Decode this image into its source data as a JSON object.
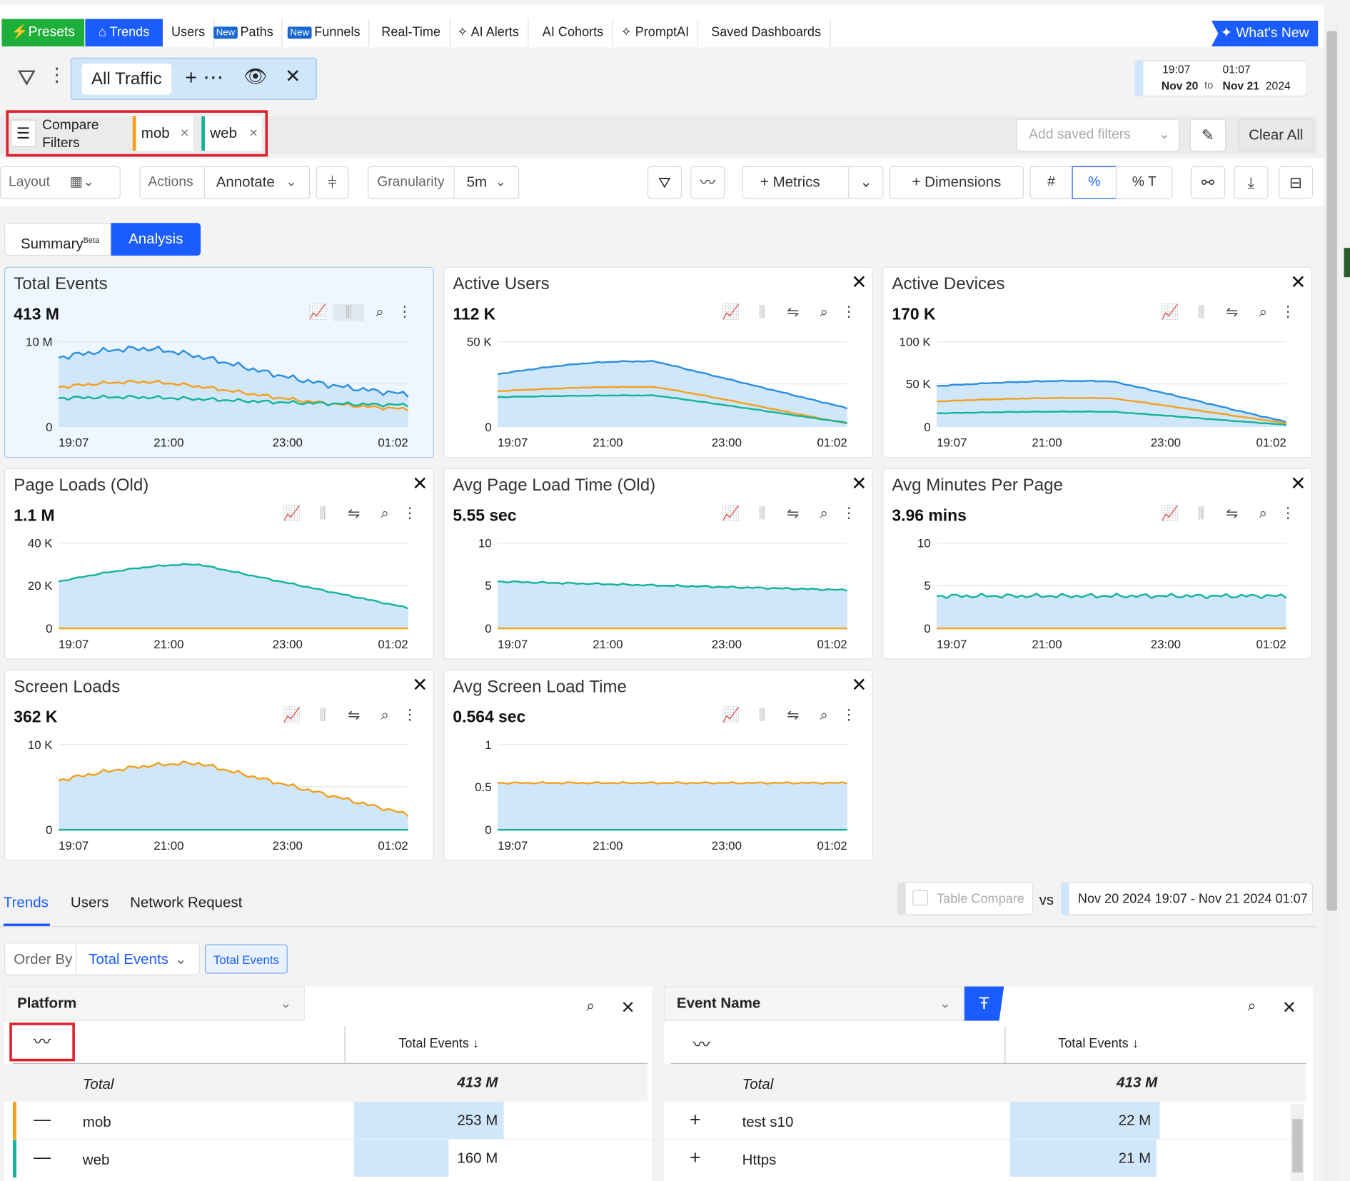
{
  "nav": {
    "presets": "Presets",
    "trends": "Trends",
    "users": "Users",
    "new": "New",
    "paths": "Paths",
    "funnels": "Funnels",
    "realtime": "Real-Time",
    "ai_alerts": "AI Alerts",
    "ai_cohorts": "AI Cohorts",
    "promptai": "PromptAI",
    "saved": "Saved Dashboards",
    "whats_new": "What's New"
  },
  "filter": {
    "chip": "All Traffic"
  },
  "date": {
    "from_time": "19:07",
    "from_date": "Nov 20",
    "to": "to",
    "to_time": "01:07",
    "to_date": "Nov 21",
    "year": "2024"
  },
  "compare": {
    "label1": "Compare",
    "label2": "Filters",
    "mob": "mob",
    "web": "web",
    "saved_placeholder": "Add saved filters",
    "clear": "Clear All"
  },
  "toolbar": {
    "layout": "Layout",
    "actions": "Actions",
    "annotate": "Annotate",
    "granularity": "Granularity",
    "gran_value": "5m",
    "metrics": "Metrics",
    "dimensions": "Dimensions",
    "hash": "#",
    "pct": "%",
    "pctT": "% T"
  },
  "view": {
    "summary": "Summary",
    "beta": "Beta",
    "analysis": "Analysis"
  },
  "cards": [
    {
      "title": "Total Events",
      "value": "413 M",
      "ymax": "10 M",
      "ymid": "",
      "y0": "0",
      "x": [
        "19:07",
        "21:00",
        "23:00",
        "01:02"
      ]
    },
    {
      "title": "Active Users",
      "value": "112 K",
      "ymax": "50 K",
      "ymid": "",
      "y0": "0",
      "x": [
        "19:07",
        "21:00",
        "23:00",
        "01:02"
      ]
    },
    {
      "title": "Active Devices",
      "value": "170 K",
      "ymax": "100 K",
      "ymid": "50 K",
      "y0": "0",
      "x": [
        "19:07",
        "21:00",
        "23:00",
        "01:02"
      ]
    },
    {
      "title": "Page Loads (Old)",
      "value": "1.1 M",
      "ymax": "40 K",
      "ymid": "20 K",
      "y0": "0",
      "x": [
        "19:07",
        "21:00",
        "23:00",
        "01:02"
      ]
    },
    {
      "title": "Avg Page Load Time (Old)",
      "value": "5.55 sec",
      "ymax": "10",
      "ymid": "5",
      "y0": "0",
      "x": [
        "19:07",
        "21:00",
        "23:00",
        "01:02"
      ]
    },
    {
      "title": "Avg Minutes Per Page",
      "value": "3.96 mins",
      "ymax": "10",
      "ymid": "5",
      "y0": "0",
      "x": [
        "19:07",
        "21:00",
        "23:00",
        "01:02"
      ]
    },
    {
      "title": "Screen Loads",
      "value": "362 K",
      "ymax": "10 K",
      "ymid": "",
      "y0": "0",
      "x": [
        "19:07",
        "21:00",
        "23:00",
        "01:02"
      ]
    },
    {
      "title": "Avg Screen Load Time",
      "value": "0.564 sec",
      "ymax": "1",
      "ymid": "0.5",
      "y0": "0",
      "x": [
        "19:07",
        "21:00",
        "23:00",
        "01:02"
      ]
    }
  ],
  "bottom": {
    "tab_trends": "Trends",
    "tab_users": "Users",
    "tab_network": "Network Request",
    "table_compare": "Table Compare",
    "vs": "vs",
    "range": "Nov 20 2024 19:07 - Nov 21 2024 01:07",
    "order_by": "Order By",
    "order_value": "Total Events",
    "order_chip": "Total Events"
  },
  "table1": {
    "dim": "Platform",
    "col": "Total Events ↓",
    "total_label": "Total",
    "total_value": "413 M",
    "rows": [
      {
        "label": "mob",
        "value": "253 M"
      },
      {
        "label": "web",
        "value": "160 M"
      }
    ]
  },
  "table2": {
    "dim": "Event Name",
    "col": "Total Events ↓",
    "total_label": "Total",
    "total_value": "413 M",
    "rows": [
      {
        "label": "test s10",
        "value": "22 M"
      },
      {
        "label": "Https",
        "value": "21 M"
      }
    ]
  },
  "colors": {
    "accent": "#1a5cff",
    "mob": "#f4a01c",
    "web": "#14b39a",
    "blue_line": "#2b8fe0",
    "fill": "#cfe6fb",
    "present": "#1eae3a"
  }
}
